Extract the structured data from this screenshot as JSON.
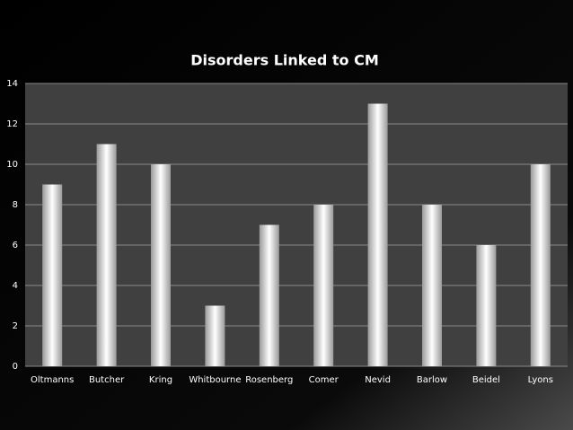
{
  "chart_data": {
    "type": "bar",
    "title": "Disorders Linked to CM",
    "categories": [
      "Oltmanns",
      "Butcher",
      "Kring",
      "Whitbourne",
      "Rosenberg",
      "Comer",
      "Nevid",
      "Barlow",
      "Beidel",
      "Lyons"
    ],
    "values": [
      9,
      11,
      10,
      3,
      7,
      8,
      13,
      8,
      6,
      10
    ],
    "color": "#ffffff",
    "ylim": [
      0,
      14
    ],
    "yticks": [
      0,
      2,
      4,
      6,
      8,
      10,
      12,
      14
    ],
    "grid": true
  }
}
